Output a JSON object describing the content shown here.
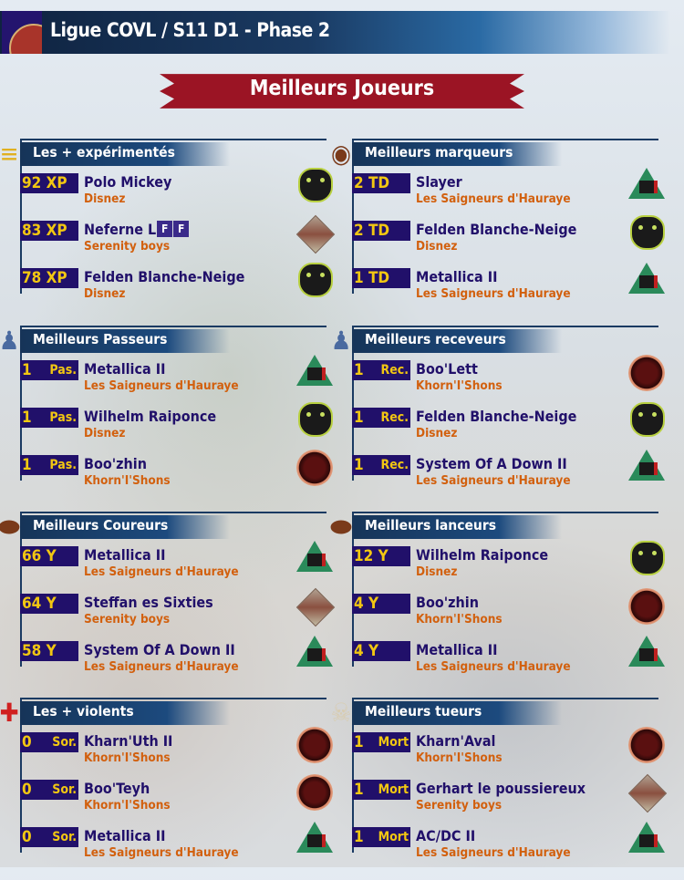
{
  "header": {
    "title": "Ligue COVL / S11 D1 - Phase 2"
  },
  "banner": {
    "title": "Meilleurs Joueurs"
  },
  "colors": {
    "stat_bg": "#21106a",
    "stat_text": "#f2c712",
    "name": "#21106a",
    "team": "#d2600e",
    "header_bg": "#1a3a62",
    "banner_bg": "#9b1424"
  },
  "sections": [
    {
      "title": "Les + expérimentés",
      "icon": "sergeant-chevrons-icon",
      "rows": [
        {
          "value": "92 XP",
          "label": "",
          "player": "Polo Mickey",
          "team": "Disnez",
          "logo": "disnez"
        },
        {
          "value": "83 XP",
          "label": "",
          "player": "Neferne L",
          "badges": [
            "F",
            "F"
          ],
          "team": "Serenity boys",
          "logo": "serenity"
        },
        {
          "value": "78 XP",
          "label": "",
          "player": "Felden Blanche-Neige",
          "team": "Disnez",
          "logo": "disnez"
        }
      ]
    },
    {
      "title": "Meilleurs marqueurs",
      "icon": "football-icon",
      "rows": [
        {
          "value": "2 TD",
          "label": "",
          "player": "Slayer",
          "team": "Les Saigneurs d'Hauraye",
          "logo": "saign"
        },
        {
          "value": "2 TD",
          "label": "",
          "player": "Felden Blanche-Neige",
          "team": "Disnez",
          "logo": "disnez"
        },
        {
          "value": "1 TD",
          "label": "",
          "player": "Metallica II",
          "team": "Les Saigneurs d'Hauraye",
          "logo": "saign"
        }
      ]
    },
    {
      "title": "Meilleurs Passeurs",
      "icon": "thrower-icon",
      "rows": [
        {
          "value": "1",
          "label": "Pas.",
          "player": "Metallica II",
          "team": "Les Saigneurs d'Hauraye",
          "logo": "saign"
        },
        {
          "value": "1",
          "label": "Pas.",
          "player": "Wilhelm Raiponce",
          "team": "Disnez",
          "logo": "disnez"
        },
        {
          "value": "1",
          "label": "Pas.",
          "player": "Boo'zhin",
          "team": "Khorn'I'Shons",
          "logo": "khorn"
        }
      ]
    },
    {
      "title": "Meilleurs receveurs",
      "icon": "catcher-icon",
      "rows": [
        {
          "value": "1",
          "label": "Rec.",
          "player": "Boo'Lett",
          "team": "Khorn'I'Shons",
          "logo": "khorn"
        },
        {
          "value": "1",
          "label": "Rec.",
          "player": "Felden Blanche-Neige",
          "team": "Disnez",
          "logo": "disnez"
        },
        {
          "value": "1",
          "label": "Rec.",
          "player": "System Of A Down II",
          "team": "Les Saigneurs d'Hauraye",
          "logo": "saign"
        }
      ]
    },
    {
      "title": "Meilleurs Coureurs",
      "icon": "ball-icon",
      "rows": [
        {
          "value": "66 Y",
          "label": "",
          "player": "Metallica II",
          "team": "Les Saigneurs d'Hauraye",
          "logo": "saign"
        },
        {
          "value": "64 Y",
          "label": "",
          "player": "Steffan es Sixties",
          "team": "Serenity boys",
          "logo": "serenity"
        },
        {
          "value": "58 Y",
          "label": "",
          "player": "System Of A Down II",
          "team": "Les Saigneurs d'Hauraye",
          "logo": "saign"
        }
      ]
    },
    {
      "title": "Meilleurs lanceurs",
      "icon": "ball-icon",
      "rows": [
        {
          "value": "12 Y",
          "label": "",
          "player": "Wilhelm Raiponce",
          "team": "Disnez",
          "logo": "disnez"
        },
        {
          "value": "4 Y",
          "label": "",
          "player": "Boo'zhin",
          "team": "Khorn'I'Shons",
          "logo": "khorn"
        },
        {
          "value": "4 Y",
          "label": "",
          "player": "Metallica II",
          "team": "Les Saigneurs d'Hauraye",
          "logo": "saign"
        }
      ]
    },
    {
      "title": "Les + violents",
      "icon": "red-cross-icon",
      "rows": [
        {
          "value": "0",
          "label": "Sor.",
          "player": "Kharn'Uth II",
          "team": "Khorn'I'Shons",
          "logo": "khorn"
        },
        {
          "value": "0",
          "label": "Sor.",
          "player": "Boo'Teyh",
          "team": "Khorn'I'Shons",
          "logo": "khorn"
        },
        {
          "value": "0",
          "label": "Sor.",
          "player": "Metallica II",
          "team": "Les Saigneurs d'Hauraye",
          "logo": "saign"
        }
      ]
    },
    {
      "title": "Meilleurs tueurs",
      "icon": "skull-crossbones-icon",
      "rows": [
        {
          "value": "1",
          "label": "Mort",
          "player": "Kharn'Aval",
          "team": "Khorn'I'Shons",
          "logo": "khorn"
        },
        {
          "value": "1",
          "label": "Mort",
          "player": "Gerhart le poussiereux",
          "team": "Serenity boys",
          "logo": "serenity"
        },
        {
          "value": "1",
          "label": "Mort",
          "player": "AC/DC II",
          "team": "Les Saigneurs d'Hauraye",
          "logo": "saign"
        }
      ]
    }
  ]
}
